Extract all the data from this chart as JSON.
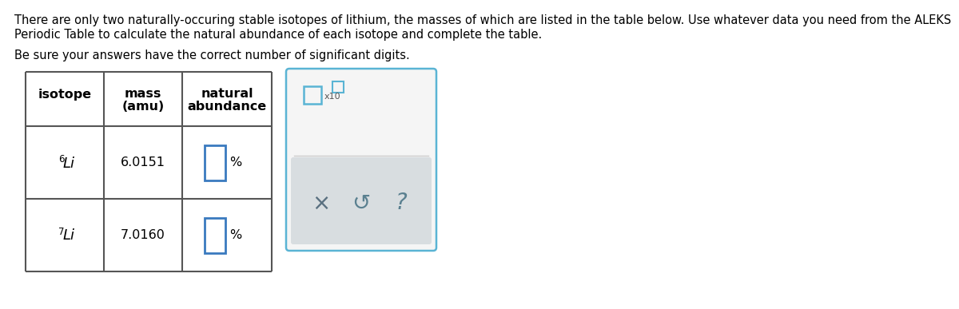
{
  "title_line1": "There are only two naturally-occuring stable isotopes of lithium, the masses of which are listed in the table below. Use whatever data you need from the ALEKS",
  "title_line2": "Periodic Table to calculate the natural abundance of each isotope and complete the table.",
  "subtitle": "Be sure your answers have the correct number of significant digits.",
  "bg_color": "#ffffff",
  "text_color": "#000000",
  "title_fontsize": 10.5,
  "table_border_color": "#555555",
  "input_box_color": "#3a7abf",
  "panel_border_color": "#5ab4d4",
  "gray_bg": "#d8dde0",
  "panel_icon_color": "#5ab4d4"
}
